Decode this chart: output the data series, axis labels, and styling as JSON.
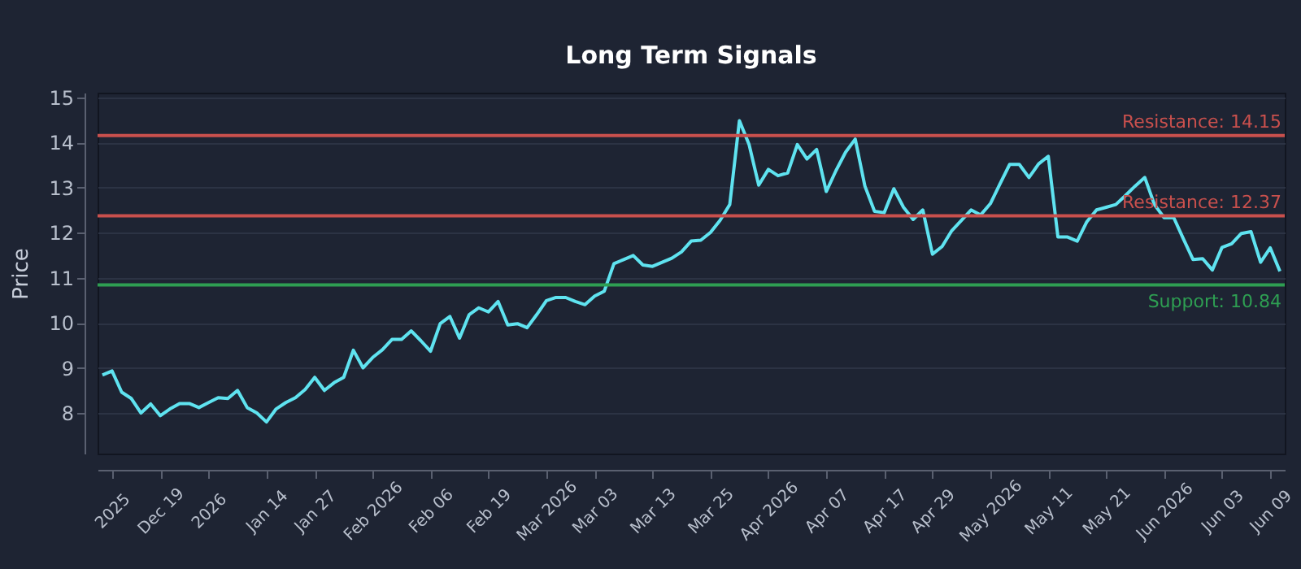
{
  "chart_data": {
    "type": "line",
    "title": "Long Term Signals",
    "ylabel": "Price",
    "series": [
      {
        "color": "#5fe3f0",
        "values": [
          8.84,
          8.93,
          8.46,
          8.32,
          8.0,
          8.2,
          7.94,
          8.09,
          8.21,
          8.21,
          8.12,
          8.23,
          8.34,
          8.32,
          8.5,
          8.12,
          8.0,
          7.8,
          8.09,
          8.23,
          8.34,
          8.52,
          8.79,
          8.5,
          8.67,
          8.79,
          9.39,
          9.0,
          9.23,
          9.4,
          9.63,
          9.63,
          9.82,
          9.6,
          9.37,
          9.98,
          10.14,
          9.66,
          10.18,
          10.33,
          10.24,
          10.47,
          9.95,
          9.98,
          9.89,
          10.18,
          10.49,
          10.56,
          10.56,
          10.47,
          10.4,
          10.59,
          10.7,
          11.31,
          11.4,
          11.49,
          11.28,
          11.25,
          11.34,
          11.43,
          11.57,
          11.81,
          11.83,
          12.0,
          12.27,
          12.62,
          14.48,
          13.95,
          13.05,
          13.4,
          13.26,
          13.32,
          13.95,
          13.63,
          13.84,
          12.91,
          13.37,
          13.78,
          14.07,
          13.03,
          12.47,
          12.44,
          12.97,
          12.56,
          12.29,
          12.5,
          11.52,
          11.69,
          12.04,
          12.27,
          12.5,
          12.39,
          12.64,
          13.08,
          13.51,
          13.51,
          13.22,
          13.52,
          13.69,
          11.9,
          11.9,
          11.81,
          12.24,
          12.5,
          12.56,
          12.62,
          12.82,
          13.03,
          13.22,
          12.62,
          12.33,
          12.33,
          11.86,
          11.4,
          11.42,
          11.17,
          11.67,
          11.75,
          11.98,
          12.02,
          11.34,
          11.66,
          11.14
        ]
      }
    ],
    "categories": [
      null,
      "2025",
      null,
      null,
      null,
      null,
      "Dec 19",
      null,
      null,
      null,
      null,
      "2026",
      null,
      null,
      null,
      null,
      null,
      "Jan 14",
      null,
      null,
      null,
      null,
      "Jan 27",
      null,
      null,
      null,
      null,
      null,
      "Feb 2026",
      null,
      null,
      null,
      null,
      null,
      "Feb 06",
      null,
      null,
      null,
      null,
      null,
      "Feb 19",
      null,
      null,
      null,
      null,
      null,
      "Mar 2026",
      null,
      null,
      null,
      null,
      "Mar 03",
      null,
      null,
      null,
      null,
      null,
      "Mar 13",
      null,
      null,
      null,
      null,
      null,
      "Mar 25",
      null,
      null,
      null,
      null,
      null,
      "Apr 2026",
      null,
      null,
      null,
      null,
      null,
      "Apr 07",
      null,
      null,
      null,
      null,
      null,
      "Apr 17",
      null,
      null,
      null,
      null,
      "Apr 29",
      null,
      null,
      null,
      null,
      null,
      "May 2026",
      null,
      null,
      null,
      null,
      null,
      "May 11",
      null,
      null,
      null,
      null,
      null,
      "May 21",
      null,
      null,
      null,
      null,
      null,
      "Jun 2026",
      null,
      null,
      null,
      null,
      null,
      "Jun 03",
      null,
      null,
      null,
      null,
      "Jun 09",
      null
    ],
    "ylim": [
      7.1,
      15.1
    ],
    "yticks": [
      8,
      9,
      10,
      11,
      12,
      13,
      14,
      15
    ],
    "grid": "y",
    "ref_lines": [
      {
        "axis": "y",
        "value": 14.15,
        "label": "Resistance: 14.15",
        "color": "#c9504d"
      },
      {
        "axis": "y",
        "value": 12.37,
        "label": "Resistance: 12.37",
        "color": "#c9504d"
      },
      {
        "axis": "y",
        "value": 10.84,
        "label": "Support: 10.84",
        "color": "#2e9e52"
      }
    ]
  }
}
